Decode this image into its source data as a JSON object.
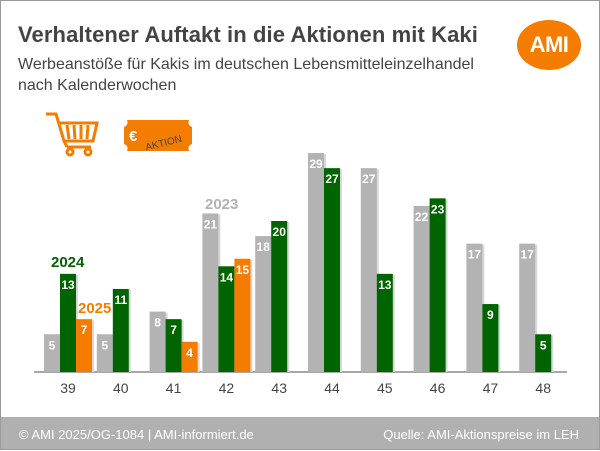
{
  "header": {
    "title": "Verhaltener Auftakt in die Aktionen mit Kaki",
    "subtitle": "Werbeanstöße für Kakis im deutschen Lebensmitteleinzelhandel nach Kalenderwochen",
    "logo": "AMI"
  },
  "icons": {
    "cart": "shopping-cart-icon",
    "ticket": "euro-aktion-ticket-icon",
    "ticket_symbol": "€",
    "ticket_text": "AKTION"
  },
  "footer": {
    "left": "© AMI 2025/OG-1084 | AMI-informiert.de",
    "right": "Quelle: AMI-Aktionspreise im LEH"
  },
  "chart_data": {
    "type": "bar",
    "title": "Verhaltener Auftakt in die Aktionen mit Kaki",
    "xlabel": "Kalenderwoche",
    "ylabel": "Werbeanstöße",
    "ylim": [
      0,
      30
    ],
    "grid": false,
    "categories": [
      "39",
      "40",
      "41",
      "42",
      "43",
      "44",
      "45",
      "46",
      "47",
      "48"
    ],
    "series": [
      {
        "name": "2023",
        "color": "#b3b3b3",
        "label_color": "#b3b3b3",
        "values": [
          5,
          5,
          8,
          21,
          18,
          29,
          27,
          22,
          17,
          17
        ]
      },
      {
        "name": "2024",
        "color": "#006400",
        "label_color": "#006400",
        "values": [
          13,
          11,
          7,
          14,
          20,
          27,
          13,
          23,
          9,
          5
        ]
      },
      {
        "name": "2025",
        "color": "#f47c00",
        "label_color": "#f47c00",
        "values": [
          7,
          null,
          4,
          15,
          null,
          null,
          null,
          null,
          null,
          null
        ]
      }
    ],
    "legend_placement": "inline-above-bars"
  }
}
